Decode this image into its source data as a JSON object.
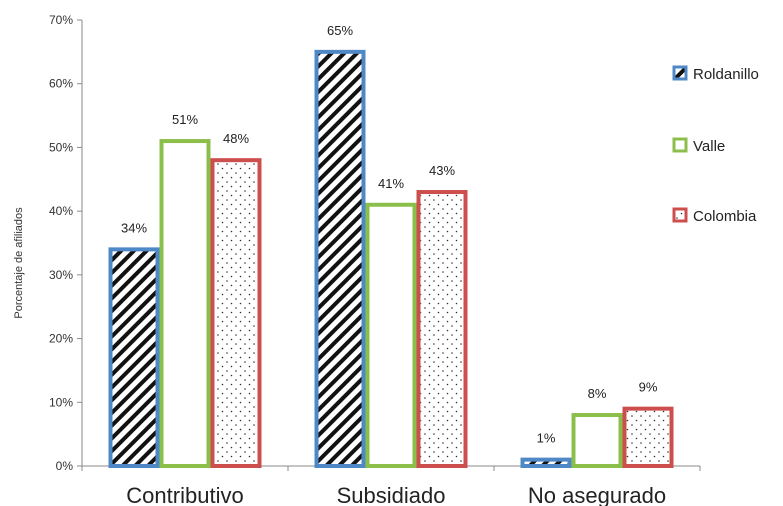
{
  "chart_data": {
    "type": "bar",
    "title": "",
    "xlabel": "",
    "ylabel": "Porcentaje de afiliados",
    "ylim": [
      0,
      70
    ],
    "yticks": [
      0,
      10,
      20,
      30,
      40,
      50,
      60,
      70
    ],
    "ytick_labels": [
      "0%",
      "10%",
      "20%",
      "30%",
      "40%",
      "50%",
      "60%",
      "70%"
    ],
    "categories": [
      "Contributivo",
      "Subsidiado",
      "No asegurado"
    ],
    "grid": false,
    "legend_position": "right",
    "series": [
      {
        "name": "Roldanillo",
        "values": [
          34,
          65,
          1
        ],
        "labels": [
          "34%",
          "65%",
          "1%"
        ],
        "edge_color": "#4f88c6",
        "pattern": "diagonal-hatch"
      },
      {
        "name": "Valle",
        "values": [
          51,
          41,
          8
        ],
        "labels": [
          "51%",
          "41%",
          "8%"
        ],
        "edge_color": "#8cbf4a",
        "pattern": "none"
      },
      {
        "name": "Colombia",
        "values": [
          48,
          43,
          9
        ],
        "labels": [
          "48%",
          "43%",
          "9%"
        ],
        "edge_color": "#cd4f4d",
        "pattern": "dots"
      }
    ]
  }
}
